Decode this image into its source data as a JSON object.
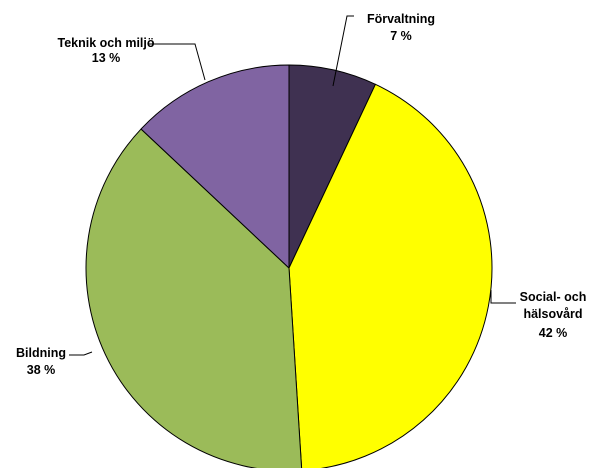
{
  "chart_data": {
    "type": "pie",
    "start_angle_deg": 0,
    "direction": "clockwise",
    "slices": [
      {
        "label": "Förvaltning",
        "value": 7,
        "value_text": "7 %",
        "color": "#3f3151"
      },
      {
        "label": "Social- och hälsovård",
        "label_lines": [
          "Social- och",
          "hälsovård"
        ],
        "value": 42,
        "value_text": "42 %",
        "color": "#ffff00"
      },
      {
        "label": "Bildning",
        "value": 38,
        "value_text": "38 %",
        "color": "#9bbb59"
      },
      {
        "label": "Teknik och miljö",
        "value": 13,
        "value_text": "13 %",
        "color": "#8064a2"
      }
    ]
  }
}
